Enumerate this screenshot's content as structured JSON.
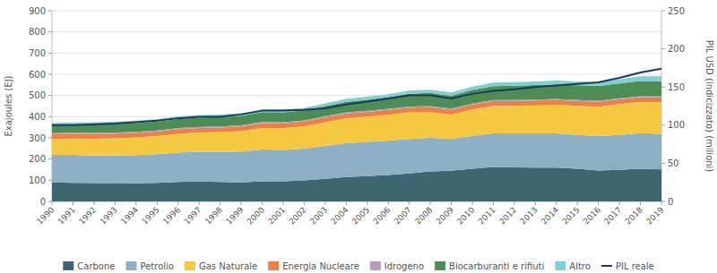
{
  "chart_data": {
    "type": "area",
    "stacked": true,
    "ylabel": "Exajoules (EJ)",
    "y2label": "PIL USD (indicizzato) (milioni)",
    "x": [
      1990,
      1991,
      1992,
      1993,
      1994,
      1995,
      1996,
      1997,
      1998,
      1999,
      2000,
      2001,
      2002,
      2003,
      2004,
      2005,
      2006,
      2007,
      2008,
      2009,
      2010,
      2011,
      2012,
      2013,
      2014,
      2015,
      2016,
      2017,
      2018,
      2019
    ],
    "xlim": [
      1990,
      2019
    ],
    "xticks": [
      1990,
      1991,
      1992,
      1993,
      1994,
      1995,
      1996,
      1997,
      1998,
      1999,
      2000,
      2001,
      2002,
      2003,
      2004,
      2005,
      2006,
      2007,
      2008,
      2009,
      2010,
      2011,
      2012,
      2013,
      2014,
      2015,
      2016,
      2017,
      2018,
      2019
    ],
    "ylim": [
      0,
      900
    ],
    "yticks": [
      0,
      100,
      200,
      300,
      400,
      500,
      600,
      700,
      800,
      900
    ],
    "y2lim": [
      0,
      250
    ],
    "y2ticks": [
      0,
      50,
      100,
      150,
      200,
      250
    ],
    "grid": true,
    "legend": "bottom",
    "series": [
      {
        "name": "Carbone",
        "color": "#3d6670",
        "type": "area",
        "values": [
          90,
          88,
          87,
          85,
          86,
          88,
          92,
          94,
          92,
          90,
          95,
          95,
          99,
          107,
          115,
          119,
          125,
          132,
          142,
          145,
          154,
          163,
          161,
          159,
          159,
          154,
          146,
          149,
          154,
          151
        ]
      },
      {
        "name": "Petrolio",
        "color": "#8fafc4",
        "type": "area",
        "values": [
          130,
          132,
          130,
          132,
          133,
          135,
          138,
          140,
          142,
          145,
          150,
          148,
          150,
          155,
          160,
          162,
          162,
          163,
          158,
          150,
          155,
          158,
          160,
          162,
          162,
          160,
          162,
          165,
          168,
          168
        ]
      },
      {
        "name": "Gas Naturale",
        "color": "#f5c842",
        "type": "area",
        "values": [
          75,
          77,
          79,
          81,
          83,
          85,
          89,
          91,
          93,
          97,
          102,
          103,
          105,
          112,
          117,
          119,
          122,
          125,
          122,
          115,
          125,
          129,
          130,
          132,
          135,
          137,
          139,
          145,
          147,
          149
        ]
      },
      {
        "name": "Energia Nucleare",
        "color": "#e8824a",
        "type": "area",
        "values": [
          22,
          22,
          22,
          22,
          22,
          22,
          22,
          22,
          22,
          22,
          23,
          23,
          23,
          23,
          23,
          23,
          23,
          23,
          23,
          23,
          23,
          23,
          23,
          23,
          23,
          23,
          23,
          23,
          23,
          23
        ]
      },
      {
        "name": "Idrogeno",
        "color": "#b39dbd",
        "type": "area",
        "values": [
          5,
          5,
          5,
          5,
          5,
          5,
          5,
          5,
          5,
          5,
          5,
          5,
          5,
          5,
          5,
          5,
          5,
          5,
          5,
          5,
          5,
          5,
          5,
          5,
          5,
          5,
          5,
          5,
          5,
          5
        ]
      },
      {
        "name": "Biocarburanti e rifiuti",
        "color": "#4e8c55",
        "type": "area",
        "values": [
          38,
          39,
          40,
          40,
          41,
          42,
          43,
          44,
          44,
          45,
          46,
          46,
          47,
          48,
          50,
          52,
          55,
          60,
          62,
          61,
          64,
          66,
          67,
          68,
          68,
          69,
          70,
          70,
          71,
          71
        ]
      },
      {
        "name": "Altro",
        "color": "#7ecfd6",
        "type": "area",
        "values": [
          10,
          10,
          11,
          11,
          11,
          11,
          12,
          12,
          12,
          12,
          12,
          13,
          13,
          13,
          14,
          14,
          14,
          15,
          15,
          15,
          16,
          17,
          17,
          17,
          18,
          18,
          18,
          20,
          22,
          25
        ]
      },
      {
        "name": "PIL reale",
        "color": "#1a3a5c",
        "type": "line",
        "axis": "y2",
        "values": [
          100,
          100,
          101,
          102,
          104,
          106,
          109,
          111,
          111,
          114,
          119,
          119,
          120,
          122,
          127,
          131,
          135,
          139,
          139,
          135,
          141,
          145,
          147,
          150,
          152,
          154,
          156,
          162,
          169,
          174
        ]
      }
    ]
  }
}
